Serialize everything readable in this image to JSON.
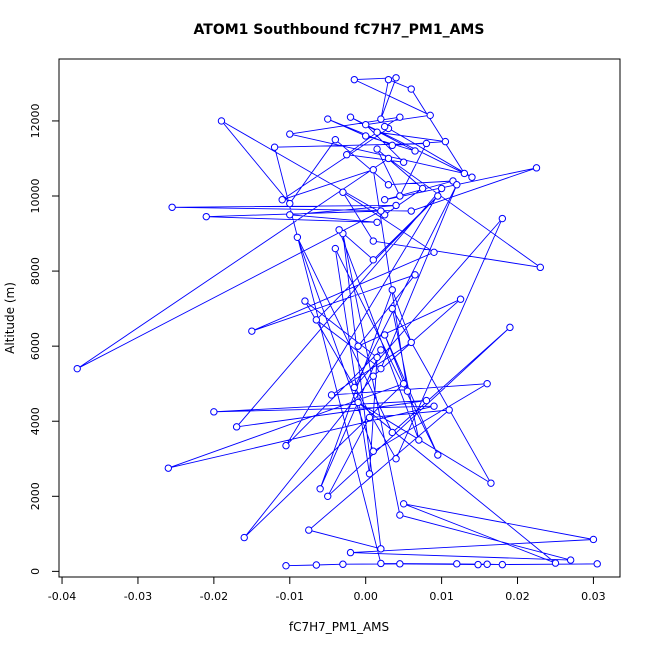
{
  "chart_data": {
    "type": "line",
    "title": "ATOM1 Southbound fC7H7_PM1_AMS",
    "xlabel": "fC7H7_PM1_AMS",
    "ylabel": "Altitude (m)",
    "xlim": [
      -0.0404,
      0.0335
    ],
    "ylim": [
      -150,
      13650
    ],
    "xticks": [
      -0.04,
      -0.03,
      -0.02,
      -0.01,
      0.0,
      0.01,
      0.02,
      0.03
    ],
    "xtick_labels": [
      "-0.04",
      "-0.03",
      "-0.02",
      "-0.01",
      "0.00",
      "0.01",
      "0.02",
      "0.03"
    ],
    "yticks": [
      0,
      2000,
      4000,
      6000,
      8000,
      10000,
      12000
    ],
    "ytick_labels": [
      "0",
      "2000",
      "4000",
      "6000",
      "8000",
      "10000",
      "12000"
    ],
    "marker": "open-circle",
    "color": "#0000ff",
    "grid": false,
    "series": [
      {
        "x": [
          -0.0105,
          -0.0065,
          -0.003,
          0.0045,
          0.0148,
          0.0305,
          0.018,
          0.016,
          0.012,
          0.002,
          -0.012,
          0.008,
          0.0045,
          0.0015,
          0.0075,
          0.0025,
          -0.019,
          -0.01,
          -0.004,
          0.003,
          0.0115,
          0.0025,
          0.0225,
          0.006,
          -0.0255,
          0.004,
          -0.01,
          0.0015,
          -0.021,
          0.002,
          -0.038,
          0.003,
          0.023,
          0.001,
          -0.003,
          0.009,
          -0.015,
          0.0065,
          -0.001,
          0.0125,
          0.001,
          -0.016,
          0.005,
          -0.026,
          0.009,
          -0.02,
          0.008,
          -0.017,
          0.01,
          -0.0105,
          0.002,
          -0.006,
          0.0035,
          0.006,
          -0.0045,
          0.016,
          0.001,
          -0.009,
          0.0035,
          0.019,
          -0.005,
          0.0005,
          0.011,
          -0.0075,
          0.002,
          -0.003,
          0.0045,
          0.027,
          -0.002,
          0.03,
          0.005,
          0.025,
          -0.001,
          0.0165,
          0.0035,
          0.007,
          -0.0035,
          0.001,
          0.0095,
          -0.0065,
          0.002,
          0.012,
          -0.0015,
          0.018,
          0.004,
          -0.008,
          0.0015,
          0.0005,
          -0.004,
          0.0095,
          0.0025,
          0.0055,
          0.001,
          -0.011,
          0.003,
          0.014,
          -0.002,
          0.0065,
          0.0,
          -0.005,
          0.0035,
          0.0105,
          0.0015,
          -0.0025,
          0.005,
          0.0,
          0.0085,
          -0.0015,
          0.004,
          0.002,
          0.003,
          0.006,
          0.013,
          -0.01,
          0.0045,
          0.0025
        ],
        "y": [
          150,
          170,
          190,
          200,
          180,
          200,
          180,
          190,
          200,
          210,
          11300,
          11400,
          10000,
          11250,
          10200,
          9500,
          12000,
          9800,
          11500,
          10300,
          10400,
          9900,
          10750,
          9600,
          9700,
          9750,
          9500,
          9300,
          9450,
          9600,
          5400,
          11000,
          8100,
          8800,
          10100,
          8500,
          6400,
          7900,
          6000,
          7250,
          5200,
          900,
          5000,
          2750,
          4400,
          4250,
          4550,
          3850,
          10200,
          3350,
          5900,
          2200,
          7500,
          6100,
          4700,
          5000,
          3200,
          8900,
          3700,
          6500,
          2000,
          4100,
          4300,
          1100,
          600,
          9000,
          1500,
          300,
          500,
          850,
          1800,
          220,
          4500,
          2350,
          7000,
          3500,
          9100,
          8300,
          10000,
          6700,
          5400,
          10300,
          4900,
          9400,
          3000,
          7200,
          5700,
          2600,
          8600,
          3100,
          6300,
          4800,
          10700,
          9900,
          11800,
          10500,
          12100,
          11200,
          11600,
          12050,
          11350,
          11450,
          11700,
          11100,
          10900,
          11900,
          12150,
          13100,
          13150,
          12050,
          13100,
          12850,
          10600,
          11650,
          12100,
          11850
        ]
      }
    ]
  }
}
